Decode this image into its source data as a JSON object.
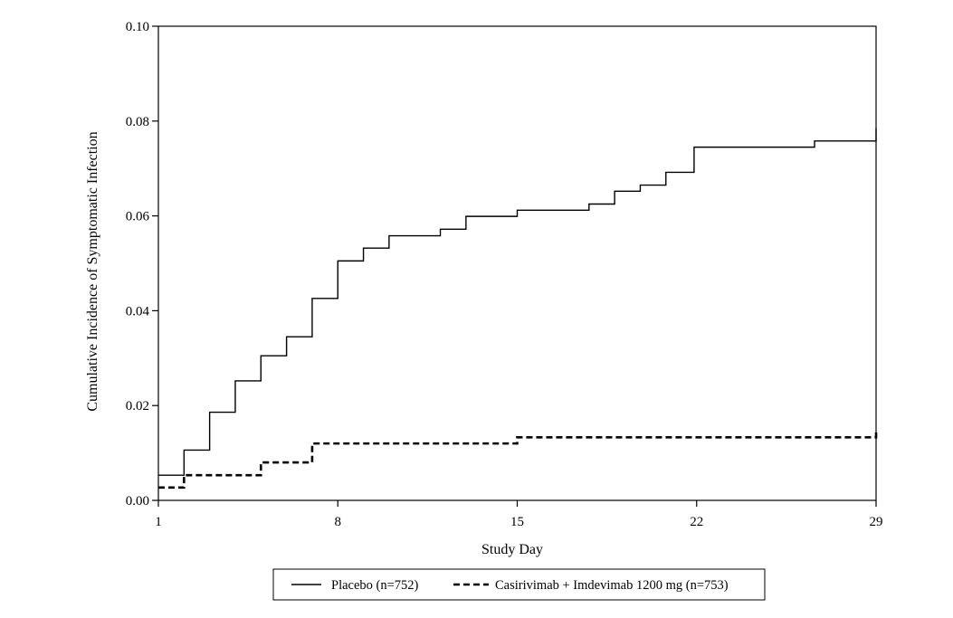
{
  "chart_data": {
    "type": "line",
    "step": true,
    "xlabel": "Study Day",
    "ylabel": "Cumulative Incidence of Symptomatic Infection",
    "xlim": [
      1,
      29
    ],
    "ylim": [
      0,
      0.1
    ],
    "xticks": [
      1,
      8,
      15,
      22,
      29
    ],
    "xtick_labels": [
      "1",
      "8",
      "15",
      "22",
      "29"
    ],
    "yticks": [
      0,
      0.02,
      0.04,
      0.06,
      0.08,
      0.1
    ],
    "ytick_labels": [
      "0.00",
      "0.02",
      "0.04",
      "0.06",
      "0.08",
      "0.10"
    ],
    "grid": false,
    "legend_position": "bottom",
    "series": [
      {
        "name": "Placebo (n=752)",
        "line_style": "solid",
        "color": "#000000",
        "x": [
          1,
          2,
          3,
          4,
          5,
          6,
          7,
          8,
          9,
          10,
          12,
          13,
          15,
          17.8,
          18.8,
          19.8,
          20.8,
          21.9,
          26.6,
          29
        ],
        "y": [
          0.0053,
          0.0106,
          0.0186,
          0.0252,
          0.0305,
          0.0345,
          0.0426,
          0.0505,
          0.0532,
          0.0558,
          0.0572,
          0.0599,
          0.0612,
          0.0625,
          0.0652,
          0.0665,
          0.0692,
          0.0745,
          0.0758,
          0.0785
        ]
      },
      {
        "name": "Casirivimab + Imdevimab 1200 mg (n=753)",
        "line_style": "dashed",
        "color": "#000000",
        "x": [
          1,
          2,
          5,
          7,
          15,
          29
        ],
        "y": [
          0.0027,
          0.0053,
          0.008,
          0.012,
          0.0133,
          0.0146
        ]
      }
    ]
  }
}
